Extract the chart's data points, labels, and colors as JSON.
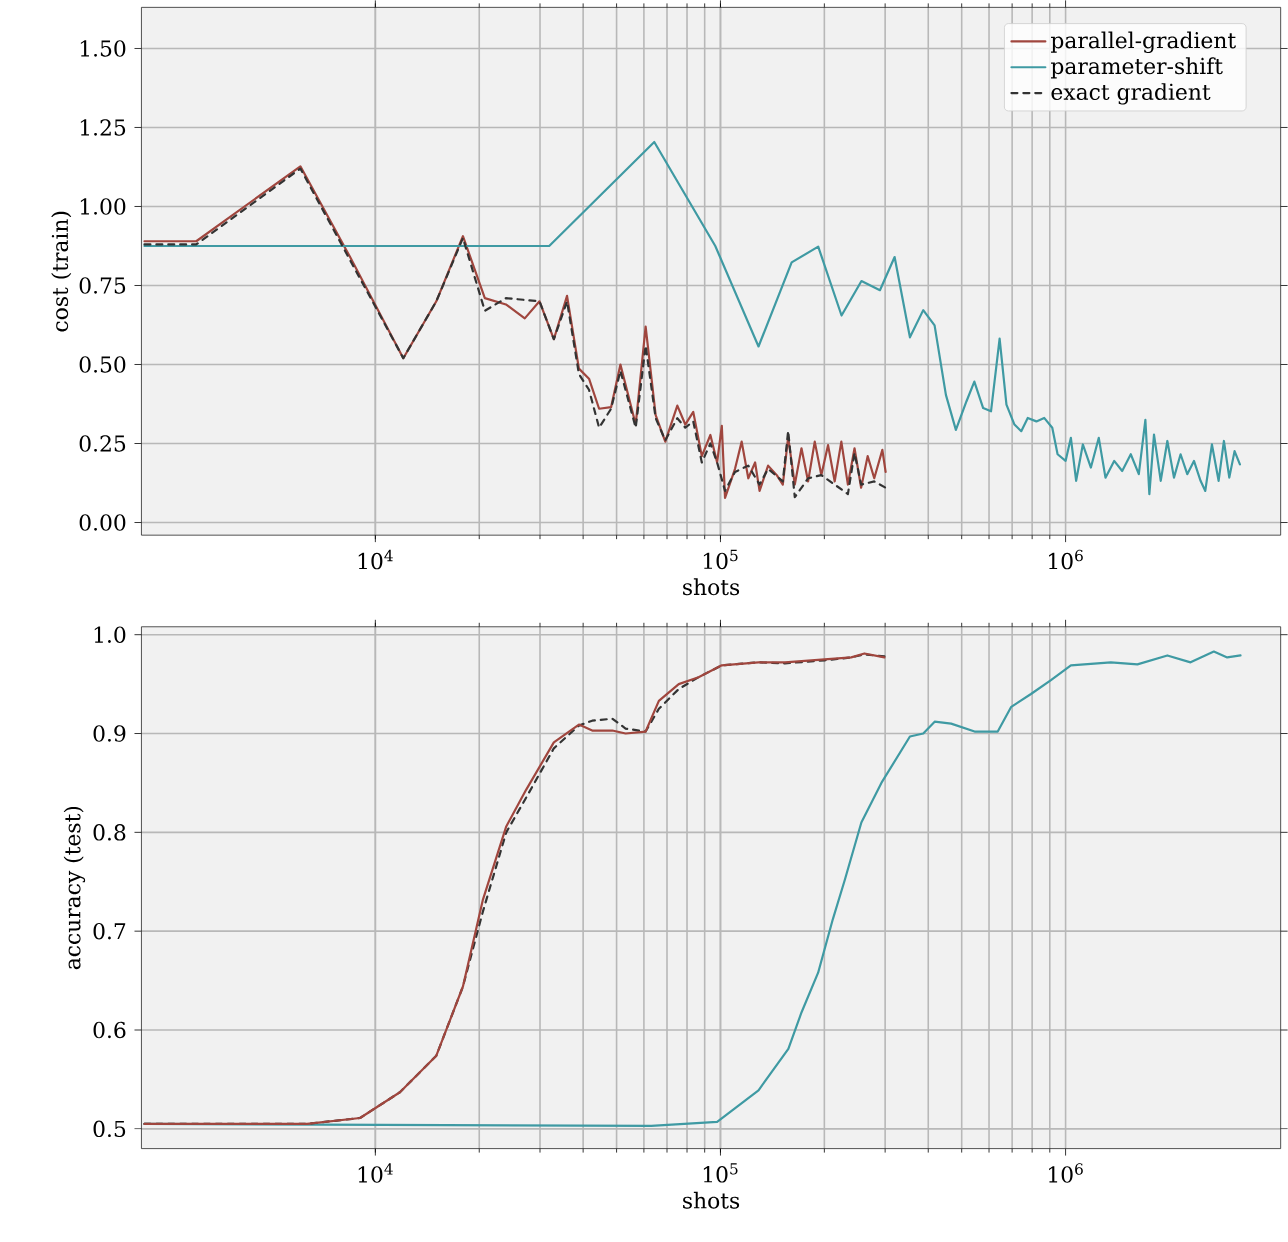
{
  "chart_data": [
    {
      "type": "line",
      "xlabel": "shots",
      "ylabel": "cost (train)",
      "log": "x",
      "grid": true,
      "legend": "top right",
      "xlim": [
        2100,
        4200000
      ],
      "ylim": [
        -0.04,
        1.63
      ],
      "xticks": [
        {
          "value": 10000,
          "label": "10$^{4}$"
        },
        {
          "value": 100000,
          "label": "10$^{5}$"
        },
        {
          "value": 1000000,
          "label": "10$^{6}$"
        }
      ],
      "yticks": [
        {
          "value": 0,
          "label": "0.00"
        },
        {
          "value": 0.25,
          "label": "0.25"
        },
        {
          "value": 0.5,
          "label": "0.50"
        },
        {
          "value": 0.75,
          "label": "0.75"
        },
        {
          "value": 1.0,
          "label": "1.00"
        },
        {
          "value": 1.25,
          "label": "1.25"
        },
        {
          "value": 1.5,
          "label": "1.50"
        }
      ],
      "series": [
        {
          "name": "parallel-gradient",
          "color": "#a0463e",
          "line_style": "solid",
          "x": [
            2143,
            3027,
            6065,
            8450,
            12050,
            15020,
            17940,
            20760,
            23900,
            27100,
            29900,
            32900,
            35930,
            38900,
            41600,
            44500,
            48200,
            51300,
            56800,
            60700,
            64900,
            69200,
            75000,
            79100,
            83400,
            88300,
            93500,
            97800,
            100900,
            103100,
            110200,
            115200,
            120400,
            126000,
            129800,
            137400,
            145600,
            151600,
            157100,
            164200,
            171700,
            179500,
            187600,
            196000,
            205000,
            214300,
            224000,
            234000,
            244600,
            255600,
            267000,
            279000,
            294500,
            301000
          ],
          "values": [
            0.89,
            0.89,
            1.127,
            0.84,
            0.52,
            0.7,
            0.906,
            0.71,
            0.69,
            0.646,
            0.7,
            0.58,
            0.717,
            0.487,
            0.455,
            0.36,
            0.365,
            0.5,
            0.31,
            0.62,
            0.34,
            0.256,
            0.37,
            0.31,
            0.35,
            0.21,
            0.277,
            0.19,
            0.306,
            0.078,
            0.17,
            0.256,
            0.14,
            0.19,
            0.1,
            0.18,
            0.15,
            0.12,
            0.27,
            0.12,
            0.235,
            0.13,
            0.256,
            0.15,
            0.245,
            0.13,
            0.256,
            0.12,
            0.235,
            0.11,
            0.21,
            0.14,
            0.23,
            0.16
          ]
        },
        {
          "name": "parameter-shift",
          "color": "#3f9aa3",
          "line_style": "solid",
          "x": [
            2143,
            31900,
            64300,
            96600,
            128900,
            160800,
            192000,
            224300,
            256200,
            289800,
            319600,
            354000,
            386900,
            417300,
            450000,
            481000,
            516000,
            544000,
            577000,
            608000,
            644000,
            674000,
            711000,
            744000,
            777000,
            823000,
            867000,
            915000,
            948000,
            1000000,
            1036000,
            1073000,
            1122000,
            1184000,
            1248000,
            1305000,
            1383000,
            1459000,
            1545000,
            1630000,
            1703000,
            1749000,
            1804000,
            1887000,
            1972000,
            2061000,
            2154000,
            2252000,
            2355000,
            2461000,
            2540000,
            2655000,
            2776000,
            2876000,
            2981000,
            3088000,
            3200000
          ],
          "values": [
            0.875,
            0.875,
            1.204,
            0.875,
            0.557,
            0.823,
            0.873,
            0.655,
            0.764,
            0.735,
            0.84,
            0.586,
            0.672,
            0.624,
            0.404,
            0.293,
            0.383,
            0.446,
            0.362,
            0.352,
            0.582,
            0.373,
            0.31,
            0.289,
            0.331,
            0.32,
            0.331,
            0.3,
            0.216,
            0.195,
            0.268,
            0.132,
            0.247,
            0.174,
            0.268,
            0.142,
            0.195,
            0.163,
            0.216,
            0.153,
            0.325,
            0.09,
            0.278,
            0.132,
            0.258,
            0.142,
            0.216,
            0.153,
            0.195,
            0.132,
            0.1,
            0.247,
            0.132,
            0.258,
            0.142,
            0.226,
            0.184
          ]
        },
        {
          "name": "exact gradient",
          "color": "#333333",
          "line_style": "dashed",
          "x": [
            2143,
            3027,
            6065,
            8450,
            12050,
            15020,
            17940,
            20760,
            23900,
            29900,
            32900,
            35930,
            38900,
            41600,
            44500,
            48200,
            51300,
            56800,
            60700,
            64900,
            69200,
            75000,
            79100,
            83400,
            88300,
            93500,
            97800,
            103100,
            110200,
            120400,
            129800,
            137400,
            151600,
            157100,
            164200,
            179500,
            196000,
            214300,
            234000,
            244600,
            255600,
            279000,
            301000
          ],
          "values": [
            0.88,
            0.88,
            1.12,
            0.83,
            0.52,
            0.7,
            0.9,
            0.67,
            0.71,
            0.7,
            0.58,
            0.7,
            0.47,
            0.42,
            0.3,
            0.36,
            0.48,
            0.3,
            0.56,
            0.33,
            0.26,
            0.33,
            0.3,
            0.32,
            0.19,
            0.25,
            0.19,
            0.1,
            0.16,
            0.18,
            0.12,
            0.17,
            0.13,
            0.29,
            0.08,
            0.14,
            0.15,
            0.12,
            0.09,
            0.22,
            0.12,
            0.13,
            0.11
          ]
        }
      ]
    },
    {
      "type": "line",
      "xlabel": "shots",
      "ylabel": "accuracy (test)",
      "log": "x",
      "grid": true,
      "xlim": [
        2100,
        4200000
      ],
      "ylim": [
        0.48,
        1.008
      ],
      "xticks": [
        {
          "value": 10000,
          "label": "10$^{4}$"
        },
        {
          "value": 100000,
          "label": "10$^{5}$"
        },
        {
          "value": 1000000,
          "label": "10$^{6}$"
        }
      ],
      "yticks": [
        {
          "value": 0.5,
          "label": "0.5"
        },
        {
          "value": 0.6,
          "label": "0.6"
        },
        {
          "value": 0.7,
          "label": "0.7"
        },
        {
          "value": 0.8,
          "label": "0.8"
        },
        {
          "value": 0.9,
          "label": "0.9"
        },
        {
          "value": 1.0,
          "label": "1.0"
        }
      ],
      "series": [
        {
          "color": "#3f9aa3",
          "line_style": "solid",
          "x": [
            2143,
            63000,
            97800,
            128900,
            157300,
            171800,
            191900,
            211600,
            229300,
            256000,
            292600,
            354000,
            387000,
            417500,
            466000,
            545000,
            636000,
            696000,
            794000,
            907000,
            1036000,
            1352000,
            1615000,
            1972000,
            2302000,
            2689000,
            2940000,
            3213000
          ],
          "values": [
            0.505,
            0.503,
            0.507,
            0.539,
            0.581,
            0.618,
            0.658,
            0.712,
            0.752,
            0.81,
            0.85,
            0.897,
            0.9,
            0.912,
            0.91,
            0.902,
            0.902,
            0.927,
            0.94,
            0.954,
            0.969,
            0.972,
            0.97,
            0.979,
            0.972,
            0.983,
            0.977,
            0.979
          ]
        },
        {
          "color": "#333333",
          "line_style": "dashed",
          "x": [
            2143,
            6340,
            9030,
            11780,
            15020,
            17940,
            20500,
            23950,
            27340,
            32900,
            38900,
            42500,
            48600,
            53100,
            60700,
            66300,
            75700,
            86400,
            100900,
            128900,
            153800,
            200400,
            239300,
            261300,
            298500
          ],
          "values": [
            0.505,
            0.505,
            0.511,
            0.537,
            0.574,
            0.644,
            0.72,
            0.8,
            0.835,
            0.885,
            0.908,
            0.913,
            0.915,
            0.905,
            0.902,
            0.925,
            0.945,
            0.957,
            0.969,
            0.972,
            0.971,
            0.974,
            0.977,
            0.98,
            0.978
          ]
        },
        {
          "color": "#a0463e",
          "line_style": "solid",
          "x": [
            2143,
            6340,
            9030,
            11780,
            15020,
            17940,
            20500,
            23950,
            27340,
            32900,
            38900,
            42500,
            48600,
            53100,
            60700,
            66300,
            75700,
            86400,
            100900,
            128900,
            153800,
            200400,
            239300,
            261300,
            298500
          ],
          "values": [
            0.505,
            0.505,
            0.511,
            0.537,
            0.574,
            0.644,
            0.732,
            0.806,
            0.843,
            0.891,
            0.909,
            0.903,
            0.903,
            0.9,
            0.902,
            0.933,
            0.95,
            0.957,
            0.969,
            0.972,
            0.972,
            0.975,
            0.977,
            0.981,
            0.977
          ]
        }
      ]
    }
  ]
}
